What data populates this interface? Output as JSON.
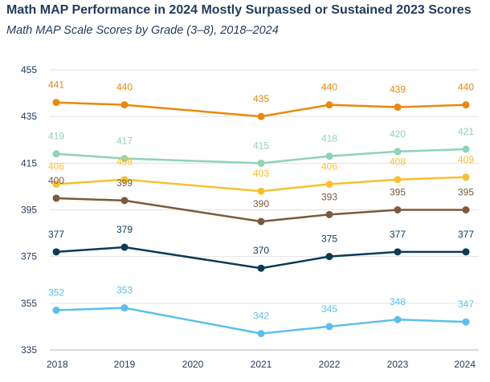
{
  "chart_data": {
    "type": "line",
    "title": "Math MAP Performance in 2024 Mostly Surpassed or Sustained 2023 Scores",
    "subtitle": "Math MAP Scale Scores by Grade (3–8), 2018–2024",
    "x_categories": [
      "2018",
      "2019",
      "2020",
      "2021",
      "2022",
      "2023",
      "2024"
    ],
    "ylim": [
      335,
      455
    ],
    "yticks": [
      335,
      355,
      375,
      395,
      415,
      435,
      455
    ],
    "grid": true,
    "series": [
      {
        "values": [
          441,
          440,
          null,
          435,
          440,
          439,
          440
        ],
        "color": "#e8890c"
      },
      {
        "values": [
          419,
          417,
          null,
          415,
          418,
          420,
          421
        ],
        "color": "#8fd3b6"
      },
      {
        "values": [
          406,
          408,
          null,
          403,
          406,
          408,
          409
        ],
        "color": "#f7c12d"
      },
      {
        "values": [
          400,
          399,
          null,
          390,
          393,
          395,
          395
        ],
        "color": "#7a5a3c"
      },
      {
        "values": [
          377,
          379,
          null,
          370,
          375,
          377,
          377
        ],
        "color": "#0b3b57"
      },
      {
        "values": [
          352,
          353,
          null,
          342,
          345,
          348,
          347
        ],
        "color": "#5bc0eb"
      }
    ]
  }
}
